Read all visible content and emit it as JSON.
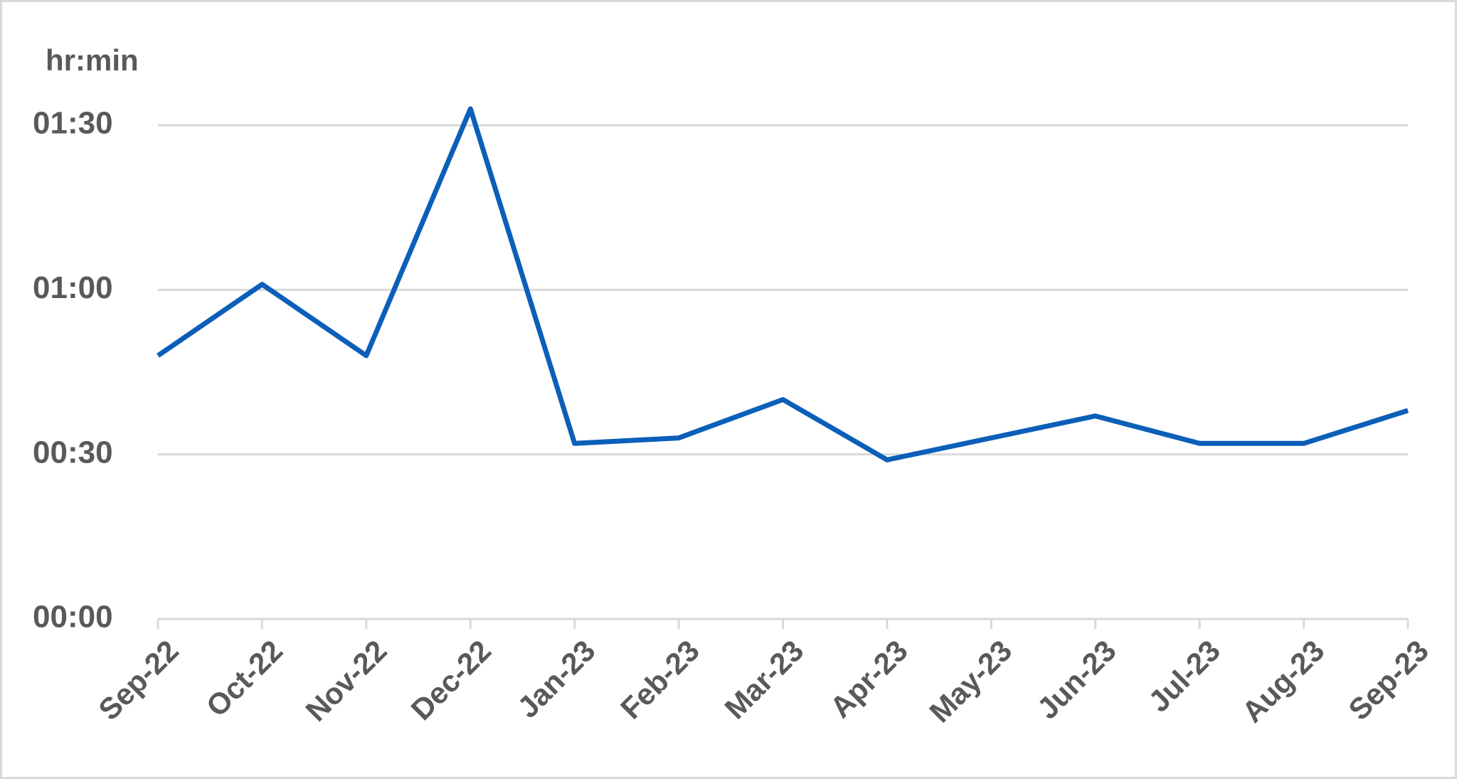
{
  "chart_data": {
    "type": "line",
    "y_label": "hr:min",
    "categories": [
      "Sep-22",
      "Oct-22",
      "Nov-22",
      "Dec-22",
      "Jan-23",
      "Feb-23",
      "Mar-23",
      "Apr-23",
      "May-23",
      "Jun-23",
      "Jul-23",
      "Aug-23",
      "Sep-23"
    ],
    "values": [
      48,
      61,
      48,
      93,
      32,
      33,
      40,
      29,
      33,
      37,
      32,
      32,
      38
    ],
    "color": "#0b5fb8",
    "ylim": [
      0,
      100
    ],
    "yticks": [
      {
        "value": 0,
        "label": "00:00"
      },
      {
        "value": 30,
        "label": "00:30"
      },
      {
        "value": 60,
        "label": "01:00"
      },
      {
        "value": 90,
        "label": "01:30"
      }
    ],
    "grid": true
  }
}
